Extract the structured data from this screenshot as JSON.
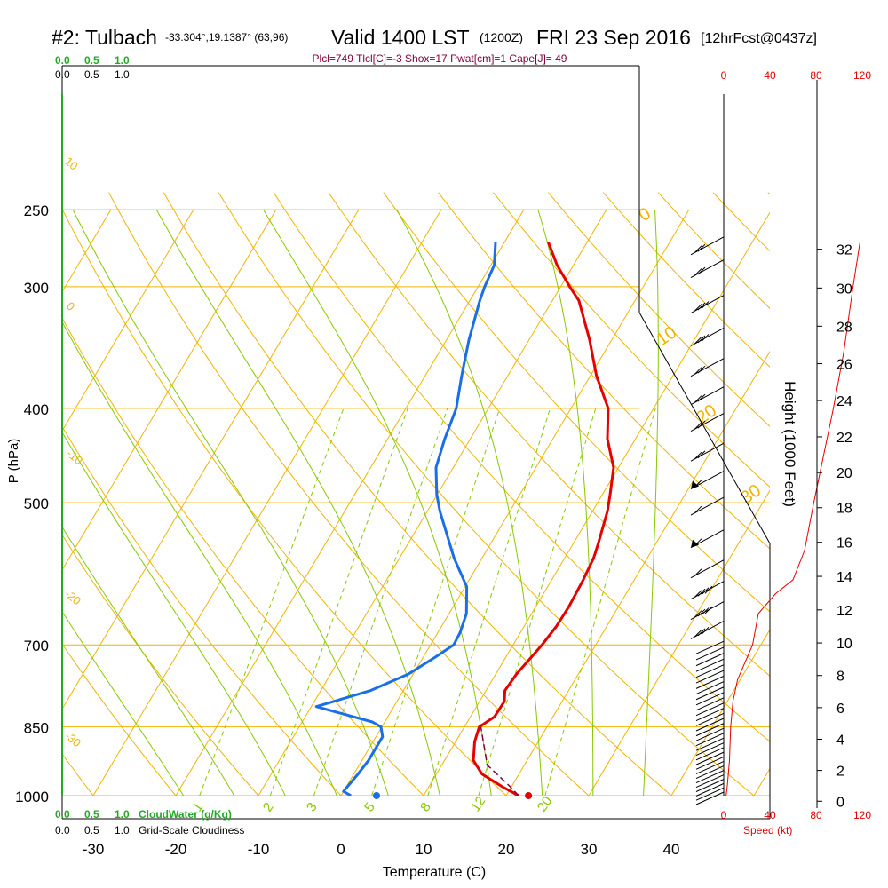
{
  "header": {
    "title_main": "#2: Tulbach",
    "location": "-33.304°,19.1387° (63,96)",
    "valid": "Valid 1400 LST",
    "zulu": "(1200Z)",
    "date": "FRI 23 Sep 2016",
    "forecast": "[12hrFcst@0437z]",
    "indices": "Plcl=749 Tlcl[C]=-3 Shox=17 Pwat[cm]=1 Cape[J]= 49"
  },
  "colors": {
    "isotherm": "#f0b400",
    "dry_adiabat": "#f0b400",
    "moist_adiabat": "#88c800",
    "mixing_ratio": "#88c800",
    "temperature": "#e60000",
    "dewpoint": "#1a6fe8",
    "parcel": "#800040",
    "cloud_green": "#22aa22",
    "wind_speed": "#e60000"
  },
  "top_scales": {
    "cloudwater": [
      "0.0",
      "0.5",
      "1.0"
    ],
    "cloudiness": [
      "0.0",
      "0.5",
      "1.0"
    ],
    "speed": [
      "0",
      "40",
      "80",
      "120"
    ]
  },
  "bottom_scales": {
    "cloudwater": [
      "0.0",
      "0.5",
      "1.0"
    ],
    "cloudwater_label": "CloudWater (g/Kg)",
    "cloudiness": [
      "0.0",
      "0.5",
      "1.0"
    ],
    "cloudiness_label": "Grid-Scale Cloudiness",
    "speed": [
      "0",
      "40",
      "80",
      "120"
    ],
    "speed_label": "Speed (kt)"
  },
  "adiabat_labels": {
    "dry_left": [
      "10",
      "0",
      "-10",
      "-20",
      "-30"
    ],
    "moist_right": [
      "0",
      "10",
      "20",
      "30"
    ],
    "mixing_bottom": [
      "1",
      "2",
      "3",
      "5",
      "8",
      "12",
      "20"
    ]
  },
  "chart_data": {
    "type": "line",
    "xlabel": "Temperature (C)",
    "ylabel": "P (hPa)",
    "y2label": "Height (1000 Feet)",
    "xlim": [
      -30,
      40
    ],
    "ylim": [
      1000,
      250
    ],
    "x_ticks": [
      -30,
      -20,
      -10,
      0,
      10,
      20,
      30,
      40
    ],
    "p_ticks": [
      250,
      300,
      400,
      500,
      700,
      850,
      1000
    ],
    "height_ticks": [
      0,
      2,
      4,
      6,
      8,
      10,
      12,
      14,
      16,
      18,
      20,
      22,
      24,
      26,
      28,
      30,
      32
    ],
    "series": [
      {
        "key": "temperature",
        "points": [
          [
            21.5,
            1000
          ],
          [
            19.0,
            980
          ],
          [
            15.5,
            950
          ],
          [
            13.5,
            920
          ],
          [
            12.3,
            880
          ],
          [
            11.8,
            850
          ],
          [
            12.9,
            830
          ],
          [
            13.0,
            800
          ],
          [
            12.3,
            780
          ],
          [
            12.5,
            750
          ],
          [
            13.1,
            720
          ],
          [
            13.5,
            700
          ],
          [
            13.9,
            670
          ],
          [
            14.0,
            640
          ],
          [
            13.8,
            600
          ],
          [
            13.5,
            570
          ],
          [
            13.0,
            550
          ],
          [
            11.8,
            510
          ],
          [
            10.9,
            490
          ],
          [
            9.4,
            460
          ],
          [
            6.6,
            430
          ],
          [
            4.5,
            400
          ],
          [
            0.7,
            370
          ],
          [
            -2.7,
            340
          ],
          [
            -6.8,
            310
          ],
          [
            -8.9,
            300
          ],
          [
            -12.0,
            285
          ],
          [
            -14.7,
            270
          ]
        ]
      },
      {
        "key": "dewpoint",
        "points": [
          [
            1.2,
            1000
          ],
          [
            0.0,
            990
          ],
          [
            0.5,
            950
          ],
          [
            0.8,
            920
          ],
          [
            0.8,
            870
          ],
          [
            -0.1,
            850
          ],
          [
            -1.5,
            840
          ],
          [
            -9.4,
            810
          ],
          [
            -4.0,
            780
          ],
          [
            -0.6,
            750
          ],
          [
            1.5,
            720
          ],
          [
            2.8,
            700
          ],
          [
            2.7,
            680
          ],
          [
            2.1,
            650
          ],
          [
            0.2,
            610
          ],
          [
            -3.4,
            570
          ],
          [
            -8.5,
            510
          ],
          [
            -10.1,
            490
          ],
          [
            -12.1,
            460
          ],
          [
            -13.1,
            430
          ],
          [
            -13.9,
            400
          ],
          [
            -15.6,
            370
          ],
          [
            -17.3,
            340
          ],
          [
            -18.8,
            310
          ],
          [
            -19.2,
            300
          ],
          [
            -19.6,
            285
          ],
          [
            -21.1,
            270
          ]
        ]
      },
      {
        "key": "parcel",
        "points": [
          [
            21.5,
            1000
          ],
          [
            19.5,
            975
          ],
          [
            15.5,
            930
          ],
          [
            12.0,
            850
          ]
        ]
      }
    ],
    "surface_markers": [
      {
        "key": "temperature",
        "value": 22.7,
        "pressure": 1000
      },
      {
        "key": "dewpoint",
        "value": 4.3,
        "pressure": 1000
      }
    ],
    "wind_speed_kt": [
      [
        1000,
        2
      ],
      [
        980,
        3
      ],
      [
        950,
        4
      ],
      [
        920,
        5
      ],
      [
        850,
        6
      ],
      [
        800,
        8
      ],
      [
        760,
        12
      ],
      [
        700,
        25
      ],
      [
        650,
        30
      ],
      [
        620,
        45
      ],
      [
        600,
        60
      ],
      [
        560,
        70
      ],
      [
        500,
        78
      ],
      [
        450,
        86
      ],
      [
        400,
        95
      ],
      [
        350,
        104
      ],
      [
        300,
        112
      ],
      [
        270,
        118
      ]
    ],
    "wind_barbs_kt": [
      {
        "p": 270,
        "spd": 20
      },
      {
        "p": 285,
        "spd": 20
      },
      {
        "p": 310,
        "spd": 25
      },
      {
        "p": 335,
        "spd": 25
      },
      {
        "p": 360,
        "spd": 20
      },
      {
        "p": 385,
        "spd": 15
      },
      {
        "p": 410,
        "spd": 15
      },
      {
        "p": 440,
        "spd": 15
      },
      {
        "p": 470,
        "spd": 55
      },
      {
        "p": 500,
        "spd": 10
      },
      {
        "p": 540,
        "spd": 55
      },
      {
        "p": 580,
        "spd": 10
      },
      {
        "p": 610,
        "spd": 35
      },
      {
        "p": 640,
        "spd": 35
      },
      {
        "p": 670,
        "spd": 30
      }
    ]
  }
}
